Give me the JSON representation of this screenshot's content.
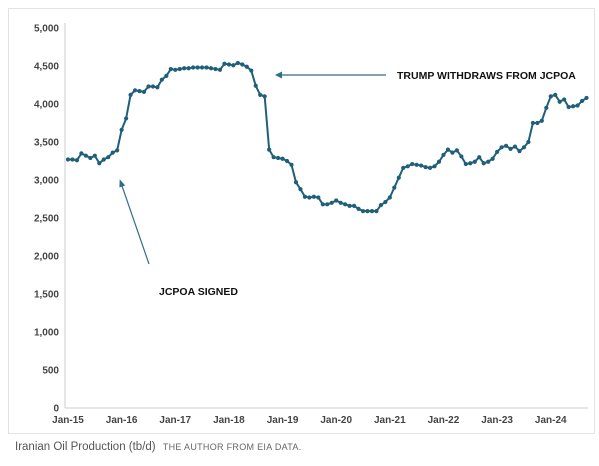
{
  "caption": {
    "title": "Iranian Oil Production (tb/d)",
    "credit": "THE AUTHOR FROM EIA DATA."
  },
  "colors": {
    "series": "#1f5f7a",
    "annotation_arrow": "#2f6f88",
    "axis": "#cccccc"
  },
  "chart_data": {
    "type": "line",
    "title": "",
    "xlabel": "",
    "ylabel": "",
    "ylim": [
      0,
      5000
    ],
    "yticks": [
      0,
      500,
      1000,
      1500,
      2000,
      2500,
      3000,
      3500,
      4000,
      4500,
      5000
    ],
    "ytick_labels": [
      "0",
      "500",
      "1,000",
      "1,500",
      "2,000",
      "2,500",
      "3,000",
      "3,500",
      "4,000",
      "4,500",
      "5,000"
    ],
    "xtick_labels": [
      "Jan-15",
      "Jan-16",
      "Jan-17",
      "Jan-18",
      "Jan-19",
      "Jan-20",
      "Jan-21",
      "Jan-22",
      "Jan-23",
      "Jan-24"
    ],
    "x_start": "2015-01",
    "x_end": "2024-08",
    "markers": true,
    "grid": false,
    "series": [
      {
        "values": [
          3270,
          3270,
          3260,
          3350,
          3320,
          3290,
          3320,
          3220,
          3270,
          3300,
          3360,
          3390,
          3660,
          3810,
          4120,
          4180,
          4170,
          4160,
          4230,
          4230,
          4220,
          4320,
          4370,
          4460,
          4450,
          4460,
          4470,
          4470,
          4480,
          4480,
          4480,
          4480,
          4470,
          4460,
          4450,
          4530,
          4520,
          4510,
          4540,
          4520,
          4490,
          4440,
          4240,
          4120,
          4100,
          3400,
          3300,
          3290,
          3280,
          3250,
          3200,
          2970,
          2880,
          2780,
          2770,
          2780,
          2770,
          2680,
          2680,
          2700,
          2730,
          2700,
          2680,
          2660,
          2660,
          2620,
          2590,
          2590,
          2590,
          2590,
          2670,
          2710,
          2770,
          2900,
          3030,
          3160,
          3180,
          3210,
          3200,
          3190,
          3170,
          3160,
          3180,
          3240,
          3330,
          3400,
          3360,
          3390,
          3310,
          3210,
          3220,
          3240,
          3300,
          3220,
          3240,
          3280,
          3370,
          3430,
          3450,
          3410,
          3440,
          3380,
          3430,
          3500,
          3750,
          3750,
          3780,
          3950,
          4100,
          4120,
          4030,
          4060,
          3960,
          3970,
          3980,
          4040,
          4080
        ]
      }
    ],
    "annotations": [
      {
        "text": "TRUMP WITHDRAWS FROM JCPOA"
      },
      {
        "text": "JCPOA SIGNED"
      }
    ]
  }
}
